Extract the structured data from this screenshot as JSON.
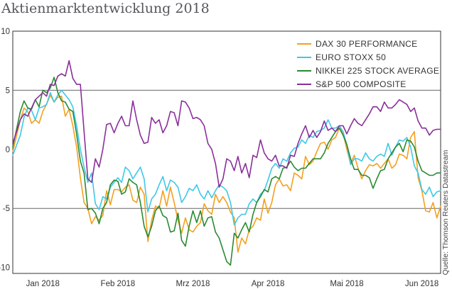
{
  "chart_data": {
    "type": "line",
    "title": "Aktienmarktentwicklung 2018",
    "xlabel": "",
    "ylabel": "",
    "ylim": [
      -10.5,
      10
    ],
    "xlim": [
      0,
      114
    ],
    "y_ticks": [
      10,
      5,
      0,
      -5,
      -10
    ],
    "y_tick_labels": [
      "10",
      "5",
      "0",
      "-5",
      "-10"
    ],
    "reference_lines": [
      5,
      -5
    ],
    "x_ticks": [
      {
        "label": "Jan 2018",
        "x": 8
      },
      {
        "label": "Feb 2018",
        "x": 28
      },
      {
        "label": "Mrz 2018",
        "x": 48
      },
      {
        "label": "Apr 2018",
        "x": 68
      },
      {
        "label": "Mai 2018",
        "x": 89
      },
      {
        "label": "Jun 2018",
        "x": 109
      }
    ],
    "legend_position": "top-right",
    "source": "Quelle: Thomson Reuters Datastream",
    "series": [
      {
        "name": "DAX 30 PERFORMANCE",
        "color": "#f4a01f",
        "x": [
          0,
          2,
          3,
          4,
          5,
          6,
          7,
          8,
          9,
          10,
          11,
          12,
          13,
          14,
          15,
          16,
          17,
          18,
          19,
          20,
          21,
          22,
          23,
          24,
          25,
          26,
          27,
          28,
          29,
          30,
          31,
          32,
          33,
          34,
          35,
          36,
          37,
          38,
          39,
          40,
          41,
          42,
          43,
          44,
          45,
          46,
          47,
          48,
          49,
          50,
          51,
          52,
          53,
          54,
          55,
          56,
          57,
          58,
          59,
          60,
          61,
          62,
          63,
          64,
          65,
          66,
          67,
          68,
          69,
          70,
          71,
          72,
          73,
          74,
          75,
          76,
          77,
          78,
          79,
          80,
          81,
          82,
          83,
          84,
          85,
          86,
          87,
          88,
          89,
          90,
          91,
          92,
          93,
          94,
          95,
          96,
          97,
          98,
          99,
          100,
          101,
          102,
          103,
          104,
          105,
          106,
          107,
          108,
          109,
          110,
          111,
          112,
          113,
          114
        ],
        "values": [
          -0.2,
          2.5,
          3.5,
          3.2,
          2.2,
          2.5,
          2.2,
          3.2,
          3.8,
          4.6,
          4.0,
          4.4,
          4.5,
          2.8,
          3.4,
          2.0,
          0.2,
          -2.4,
          -4.5,
          -5.0,
          -6.3,
          -5.7,
          -6.0,
          -5.6,
          -3.5,
          -4.7,
          -3.4,
          -3.4,
          -3.6,
          -3.2,
          -3.0,
          -4.3,
          -4.5,
          -3.2,
          -3.8,
          -7.8,
          -6.0,
          -4.8,
          -5.0,
          -3.5,
          -4.8,
          -3.2,
          -4.5,
          -6.0,
          -7.1,
          -5.8,
          -6.8,
          -7.0,
          -6.5,
          -6.2,
          -4.6,
          -5.2,
          -5.5,
          -3.8,
          -4.5,
          -4.0,
          -4.5,
          -5.3,
          -5.8,
          -8.7,
          -7.5,
          -8.0,
          -6.8,
          -6.5,
          -5.8,
          -6.0,
          -4.2,
          -5.4,
          -4.5,
          -3.0,
          -2.5,
          -3.1,
          -3.0,
          -3.5,
          -2.0,
          -2.2,
          -2.5,
          -0.6,
          -1.3,
          -1.0,
          -0.2,
          0.5,
          0.6,
          0.0,
          0.8,
          1.0,
          1.8,
          1.4,
          0.0,
          -1.2,
          -0.5,
          -1.6,
          -2.5,
          -1.8,
          -1.3,
          -1.4,
          -1.2,
          -1.6,
          -1.2,
          -0.8,
          -1.6,
          -1.3,
          -0.4,
          -0.5,
          -0.8,
          1.0,
          1.5,
          -2.4,
          -3.5,
          -5.2,
          -5.3,
          -4.5,
          -5.8,
          -4.8
        ]
      },
      {
        "name": "EURO STOXX 50",
        "color": "#3fc8e8",
        "x": [
          0,
          2,
          3,
          4,
          5,
          6,
          7,
          8,
          9,
          10,
          11,
          12,
          13,
          14,
          15,
          16,
          17,
          18,
          19,
          20,
          21,
          22,
          23,
          24,
          25,
          26,
          27,
          28,
          29,
          30,
          31,
          32,
          33,
          34,
          35,
          36,
          37,
          38,
          39,
          40,
          41,
          42,
          43,
          44,
          45,
          46,
          47,
          48,
          49,
          50,
          51,
          52,
          53,
          54,
          55,
          56,
          57,
          58,
          59,
          60,
          61,
          62,
          63,
          64,
          65,
          66,
          67,
          68,
          69,
          70,
          71,
          72,
          73,
          74,
          75,
          76,
          77,
          78,
          79,
          80,
          81,
          82,
          83,
          84,
          85,
          86,
          87,
          88,
          89,
          90,
          91,
          92,
          93,
          94,
          95,
          96,
          97,
          98,
          99,
          100,
          101,
          102,
          103,
          104,
          105,
          106,
          107,
          108,
          109,
          110,
          111,
          112,
          113,
          114
        ],
        "values": [
          -0.5,
          1.2,
          2.7,
          3.5,
          3.3,
          2.5,
          3.5,
          3.6,
          3.8,
          4.8,
          4.0,
          4.6,
          5.0,
          4.6,
          4.2,
          3.6,
          2.0,
          0.0,
          -1.5,
          -2.8,
          -2.0,
          -4.6,
          -5.1,
          -4.0,
          -4.2,
          -3.2,
          -2.8,
          -2.4,
          -2.8,
          -1.5,
          -1.8,
          -2.5,
          -2.0,
          -1.5,
          -2.5,
          -5.3,
          -4.2,
          -3.8,
          -3.0,
          -2.3,
          -3.5,
          -2.6,
          -2.8,
          -3.2,
          -4.5,
          -4.0,
          -3.3,
          -3.5,
          -3.0,
          -3.8,
          -4.2,
          -3.5,
          -4.1,
          -3.5,
          -3.0,
          -3.2,
          -3.5,
          -4.5,
          -6.4,
          -5.8,
          -5.5,
          -5.5,
          -4.6,
          -4.2,
          -4.5,
          -3.8,
          -3.5,
          -2.6,
          -1.6,
          -1.2,
          -1.6,
          -0.8,
          -1.0,
          -0.3,
          0.1,
          0.2,
          0.8,
          0.5,
          1.2,
          1.0,
          1.5,
          1.6,
          1.8,
          2.5,
          1.8,
          1.8,
          2.0,
          1.5,
          0.4,
          -1.3,
          -0.8,
          -0.8,
          -1.0,
          -0.3,
          -0.8,
          -1.0,
          -0.6,
          -0.4,
          -0.6,
          0.5,
          -0.5,
          0.2,
          0.8,
          0.7,
          1.0,
          0.2,
          -1.4,
          -2.0,
          -3.4,
          -3.8,
          -3.2,
          -4.0,
          -3.6,
          -3.5
        ]
      },
      {
        "name": "NIKKEI 225 STOCK AVERAGE",
        "color": "#2a8a33",
        "x": [
          0,
          2,
          3,
          4,
          5,
          6,
          7,
          8,
          9,
          10,
          11,
          12,
          13,
          14,
          15,
          16,
          17,
          18,
          19,
          20,
          21,
          22,
          23,
          24,
          25,
          26,
          27,
          28,
          29,
          30,
          31,
          32,
          33,
          34,
          35,
          36,
          37,
          38,
          39,
          40,
          41,
          42,
          43,
          44,
          45,
          46,
          47,
          48,
          49,
          50,
          51,
          52,
          53,
          54,
          55,
          56,
          57,
          58,
          59,
          60,
          61,
          62,
          63,
          64,
          65,
          66,
          67,
          68,
          69,
          70,
          71,
          72,
          73,
          74,
          75,
          76,
          77,
          78,
          79,
          80,
          81,
          82,
          83,
          84,
          85,
          86,
          87,
          88,
          89,
          90,
          91,
          92,
          93,
          94,
          95,
          96,
          97,
          98,
          99,
          100,
          101,
          102,
          103,
          104,
          105,
          106,
          107,
          108,
          109,
          110,
          111,
          112,
          113,
          114
        ],
        "values": [
          0.2,
          3.2,
          4.1,
          3.5,
          3.4,
          4.2,
          3.6,
          5.0,
          4.8,
          5.2,
          6.1,
          4.8,
          4.1,
          4.0,
          3.4,
          3.2,
          1.3,
          -1.0,
          -2.0,
          -5.1,
          -5.0,
          -5.4,
          -6.3,
          -5.0,
          -4.5,
          -3.0,
          -2.6,
          -2.7,
          -3.8,
          -3.6,
          -2.5,
          -2.8,
          -3.0,
          -4.5,
          -6.5,
          -7.4,
          -6.5,
          -5.2,
          -4.8,
          -5.6,
          -5.8,
          -7.0,
          -6.9,
          -5.4,
          -7.7,
          -8.2,
          -6.5,
          -5.2,
          -6.2,
          -5.2,
          -6.5,
          -5.8,
          -5.7,
          -7.0,
          -7.5,
          -8.5,
          -9.5,
          -9.8,
          -7.1,
          -7.5,
          -6.8,
          -6.2,
          -7.0,
          -5.5,
          -4.5,
          -4.0,
          -3.4,
          -3.6,
          -2.5,
          -2.3,
          -2.5,
          -1.6,
          -1.5,
          -1.0,
          -1.5,
          -1.8,
          -1.6,
          -1.6,
          -1.2,
          -0.8,
          -0.8,
          -0.8,
          -0.3,
          0.5,
          1.0,
          1.5,
          1.8,
          1.2,
          0.4,
          -0.8,
          -1.7,
          -1.7,
          -2.2,
          -2.2,
          -2.4,
          -3.3,
          -2.5,
          -1.8,
          -1.7,
          -0.8,
          -0.3,
          0.2,
          0.5,
          -0.2,
          0.8,
          0.7,
          0.2,
          -1.0,
          -1.8,
          -2.0,
          -2.2,
          -2.2,
          -2.0,
          -2.0
        ]
      },
      {
        "name": "S&P 500 COMPOSITE",
        "color": "#8a2f9a",
        "x": [
          0,
          2,
          3,
          4,
          5,
          6,
          7,
          8,
          9,
          10,
          11,
          12,
          13,
          14,
          15,
          16,
          17,
          18,
          19,
          20,
          21,
          22,
          23,
          24,
          25,
          26,
          27,
          28,
          29,
          30,
          31,
          32,
          33,
          34,
          35,
          36,
          37,
          38,
          39,
          40,
          41,
          42,
          43,
          44,
          45,
          46,
          47,
          48,
          49,
          50,
          51,
          52,
          53,
          54,
          55,
          56,
          57,
          58,
          59,
          60,
          61,
          62,
          63,
          64,
          65,
          66,
          67,
          68,
          69,
          70,
          71,
          72,
          73,
          74,
          75,
          76,
          77,
          78,
          79,
          80,
          81,
          82,
          83,
          84,
          85,
          86,
          87,
          88,
          89,
          90,
          91,
          92,
          93,
          94,
          95,
          96,
          97,
          98,
          99,
          100,
          101,
          102,
          103,
          104,
          105,
          106,
          107,
          108,
          109,
          110,
          111,
          112,
          113,
          114
        ],
        "values": [
          0.5,
          2.5,
          3.0,
          2.8,
          3.5,
          4.2,
          4.5,
          4.8,
          4.5,
          5.5,
          5.4,
          6.2,
          6.4,
          6.2,
          7.5,
          6.0,
          5.5,
          5.5,
          1.5,
          -2.5,
          -2.8,
          -0.8,
          -1.5,
          0.0,
          2.1,
          2.2,
          1.4,
          2.2,
          2.8,
          2.0,
          2.0,
          4.1,
          2.5,
          1.2,
          0.5,
          0.6,
          2.7,
          2.2,
          2.5,
          1.4,
          2.0,
          3.2,
          3.1,
          2.0,
          4.1,
          4.0,
          3.5,
          2.6,
          2.7,
          2.5,
          2.0,
          0.5,
          0.0,
          -1.2,
          -3.2,
          -2.5,
          -0.8,
          -1.0,
          -1.8,
          -0.6,
          -2.0,
          -1.2,
          -2.4,
          -0.5,
          -0.7,
          0.8,
          -0.3,
          -0.8,
          -1.0,
          -0.5,
          -1.4,
          -1.4,
          -1.6,
          -0.5,
          -0.6,
          0.5,
          1.3,
          2.0,
          1.0,
          1.6,
          1.0,
          1.5,
          2.4,
          1.6,
          1.8,
          1.5,
          2.0,
          2.0,
          1.3,
          2.0,
          2.6,
          2.2,
          2.0,
          2.5,
          3.0,
          3.6,
          3.6,
          3.2,
          4.0,
          3.5,
          3.5,
          3.8,
          4.2,
          4.0,
          3.8,
          3.2,
          3.5,
          2.4,
          1.8,
          1.8,
          1.2,
          1.6,
          1.7,
          1.7
        ]
      }
    ]
  }
}
